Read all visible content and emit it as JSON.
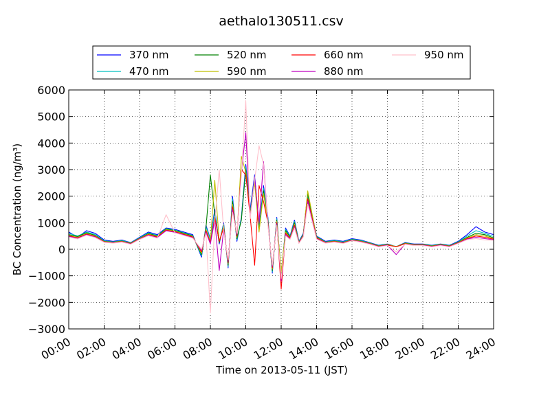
{
  "chart_data": {
    "type": "line",
    "title": "aethalo130511.csv",
    "xlabel": "Time on 2013-05-11 (JST)",
    "ylabel": "BC Concentration (ng/m³)",
    "ylim": [
      -3000,
      6000
    ],
    "xlim": [
      "00:00",
      "24:00"
    ],
    "grid": true,
    "legend_position": "top",
    "yticks": [
      -3000,
      -2000,
      -1000,
      0,
      1000,
      2000,
      3000,
      4000,
      5000,
      6000
    ],
    "xticks": [
      "00:00",
      "02:00",
      "04:00",
      "06:00",
      "08:00",
      "10:00",
      "12:00",
      "14:00",
      "16:00",
      "18:00",
      "20:00",
      "22:00",
      "24:00"
    ],
    "x": [
      "00:00",
      "00:30",
      "01:00",
      "01:30",
      "02:00",
      "02:30",
      "03:00",
      "03:30",
      "04:00",
      "04:30",
      "05:00",
      "05:30",
      "06:00",
      "06:30",
      "07:00",
      "07:30",
      "07:45",
      "08:00",
      "08:15",
      "08:30",
      "08:45",
      "09:00",
      "09:15",
      "09:30",
      "09:45",
      "10:00",
      "10:15",
      "10:30",
      "10:45",
      "11:00",
      "11:15",
      "11:30",
      "11:45",
      "12:00",
      "12:15",
      "12:30",
      "12:45",
      "13:00",
      "13:15",
      "13:30",
      "14:00",
      "14:30",
      "15:00",
      "15:30",
      "16:00",
      "16:30",
      "17:00",
      "17:30",
      "18:00",
      "18:30",
      "19:00",
      "19:30",
      "20:00",
      "20:30",
      "21:00",
      "21:30",
      "22:00",
      "22:30",
      "23:00",
      "23:30",
      "24:00"
    ],
    "series": [
      {
        "name": "370 nm",
        "color": "#0000ff",
        "values": [
          650,
          450,
          700,
          600,
          350,
          300,
          350,
          250,
          450,
          650,
          550,
          800,
          750,
          650,
          550,
          -300,
          900,
          400,
          1500,
          200,
          1000,
          -700,
          2000,
          300,
          1200,
          3200,
          1500,
          2800,
          800,
          2400,
          1200,
          -900,
          1200,
          -1000,
          800,
          500,
          1100,
          300,
          600,
          2100,
          500,
          300,
          350,
          300,
          400,
          350,
          250,
          150,
          200,
          100,
          250,
          200,
          200,
          150,
          200,
          150,
          300,
          550,
          850,
          650,
          550
        ]
      },
      {
        "name": "470 nm",
        "color": "#00bfbf",
        "values": [
          600,
          500,
          650,
          550,
          320,
          280,
          330,
          240,
          430,
          620,
          520,
          780,
          720,
          620,
          520,
          -250,
          850,
          380,
          1400,
          250,
          950,
          -650,
          1900,
          350,
          1150,
          3100,
          1400,
          2700,
          750,
          2300,
          1150,
          -850,
          1150,
          -950,
          750,
          480,
          1050,
          280,
          580,
          2000,
          480,
          280,
          330,
          280,
          380,
          330,
          240,
          140,
          190,
          100,
          240,
          190,
          190,
          140,
          190,
          140,
          280,
          500,
          700,
          600,
          480
        ]
      },
      {
        "name": "520 nm",
        "color": "#008000",
        "values": [
          550,
          480,
          620,
          520,
          300,
          270,
          310,
          230,
          410,
          590,
          500,
          760,
          700,
          600,
          500,
          -200,
          800,
          2800,
          1300,
          250,
          900,
          -600,
          1800,
          400,
          1100,
          3000,
          1350,
          2600,
          700,
          2200,
          1100,
          -800,
          1100,
          -900,
          700,
          450,
          1000,
          260,
          550,
          2100,
          460,
          270,
          310,
          260,
          360,
          310,
          230,
          130,
          180,
          100,
          230,
          180,
          180,
          130,
          180,
          130,
          260,
          450,
          600,
          550,
          430
        ]
      },
      {
        "name": "590 nm",
        "color": "#bfbf00",
        "values": [
          520,
          450,
          590,
          500,
          290,
          260,
          300,
          220,
          400,
          570,
          480,
          740,
          680,
          580,
          480,
          -150,
          750,
          300,
          2600,
          300,
          850,
          -550,
          1700,
          450,
          3500,
          2900,
          1300,
          2500,
          650,
          2100,
          1050,
          -750,
          1050,
          -850,
          650,
          430,
          950,
          250,
          530,
          2200,
          440,
          260,
          300,
          250,
          350,
          300,
          220,
          120,
          170,
          100,
          220,
          170,
          170,
          120,
          170,
          120,
          250,
          420,
          550,
          500,
          400
        ]
      },
      {
        "name": "660 nm",
        "color": "#ff0000",
        "values": [
          500,
          430,
          570,
          480,
          280,
          250,
          290,
          210,
          390,
          550,
          460,
          720,
          660,
          560,
          460,
          -100,
          700,
          250,
          1200,
          300,
          800,
          -500,
          1600,
          500,
          3000,
          2800,
          1250,
          -600,
          2400,
          1800,
          1000,
          -700,
          1000,
          -1500,
          600,
          410,
          900,
          240,
          510,
          1900,
          420,
          250,
          290,
          240,
          340,
          290,
          210,
          110,
          160,
          90,
          210,
          160,
          160,
          110,
          160,
          110,
          240,
          400,
          500,
          450,
          380
        ]
      },
      {
        "name": "880 nm",
        "color": "#bf00bf",
        "values": [
          480,
          410,
          550,
          460,
          270,
          240,
          280,
          200,
          380,
          530,
          440,
          700,
          640,
          540,
          440,
          -50,
          650,
          200,
          1100,
          -800,
          750,
          -450,
          1500,
          550,
          2900,
          4400,
          1200,
          2700,
          1000,
          3300,
          950,
          -650,
          950,
          -1200,
          550,
          390,
          850,
          230,
          490,
          1800,
          400,
          240,
          280,
          230,
          330,
          280,
          200,
          100,
          150,
          -200,
          200,
          150,
          150,
          100,
          150,
          100,
          230,
          380,
          450,
          400,
          360
        ]
      },
      {
        "name": "950 nm",
        "color": "#ffc0cb",
        "values": [
          460,
          390,
          530,
          440,
          260,
          230,
          270,
          190,
          370,
          510,
          420,
          1300,
          620,
          520,
          420,
          0,
          600,
          -2400,
          1000,
          3000,
          700,
          -400,
          1400,
          600,
          2800,
          5600,
          1150,
          2600,
          3900,
          3200,
          900,
          -600,
          900,
          -1100,
          500,
          370,
          800,
          220,
          470,
          1700,
          380,
          230,
          270,
          220,
          320,
          270,
          190,
          90,
          140,
          -100,
          190,
          140,
          140,
          90,
          140,
          90,
          220,
          360,
          400,
          350,
          340
        ]
      }
    ]
  }
}
